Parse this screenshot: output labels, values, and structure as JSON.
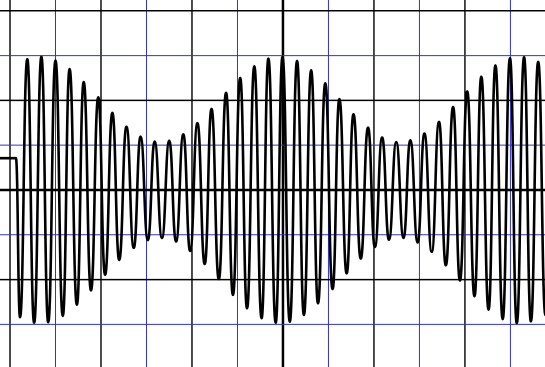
{
  "chart_data": {
    "type": "line",
    "xlim": [
      -6.22,
      5.76
    ],
    "ylim": [
      -3.95,
      4.24
    ],
    "xticks": [
      -6,
      -5,
      -4,
      -3,
      -2,
      -1,
      0,
      1,
      2,
      3,
      4,
      5
    ],
    "yticks": [
      -3,
      -2,
      -1,
      0,
      1,
      2,
      3,
      4
    ],
    "grid": true,
    "grid_color": "#000000",
    "minor_grid_color": "#3333cc",
    "color": "#000000",
    "x": [
      -6.22,
      -5.87,
      -5.78,
      -5.62,
      -5.47,
      -5.31,
      -5.16,
      -5.0,
      -4.84,
      -4.69,
      -4.53,
      -4.38,
      -4.22,
      -4.06,
      -3.91,
      -3.75,
      -3.6,
      -3.44,
      -3.28,
      -3.13,
      -2.97,
      -2.82,
      -2.66,
      -2.5,
      -2.35,
      -2.19,
      -2.04,
      -1.88,
      -1.72,
      -1.57,
      -1.41,
      -1.25,
      -1.1,
      -0.94,
      -0.79,
      -0.63,
      -0.47,
      -0.32,
      -0.16,
      -0.01,
      0.15,
      0.31,
      0.46,
      0.62,
      0.77,
      0.93,
      1.09,
      1.24,
      1.4,
      1.55,
      1.71,
      1.87,
      2.02,
      2.18,
      2.33,
      2.49,
      2.65,
      2.8,
      2.96,
      3.11,
      3.27,
      3.43,
      3.58,
      3.74,
      3.89,
      4.05,
      4.21,
      4.36,
      4.52,
      4.67,
      4.83,
      4.99,
      5.14,
      5.3,
      5.45,
      5.61,
      5.77
    ],
    "values": [
      0.71,
      0.71,
      -2.84,
      2.92,
      -2.96,
      2.97,
      -2.95,
      2.89,
      -2.81,
      2.7,
      -2.56,
      2.41,
      -2.24,
      2.07,
      -1.89,
      1.72,
      -1.56,
      1.41,
      -1.29,
      1.19,
      -1.12,
      1.08,
      -1.07,
      1.1,
      -1.15,
      1.24,
      -1.36,
      1.49,
      -1.65,
      1.81,
      -1.99,
      2.17,
      -2.34,
      2.5,
      -2.64,
      2.76,
      -2.86,
      2.93,
      -2.96,
      2.97,
      -2.94,
      2.88,
      -2.79,
      2.67,
      -2.53,
      2.38,
      -2.21,
      2.03,
      -1.86,
      1.69,
      -1.53,
      1.39,
      -1.27,
      1.17,
      -1.11,
      1.07,
      -1.07,
      1.11,
      -1.17,
      1.26,
      -1.38,
      1.52,
      -1.68,
      1.85,
      -2.02,
      2.2,
      -2.37,
      2.53,
      -2.67,
      2.78,
      -2.88,
      2.94,
      -2.97,
      2.96,
      -2.93,
      2.86,
      -2.79
    ]
  }
}
